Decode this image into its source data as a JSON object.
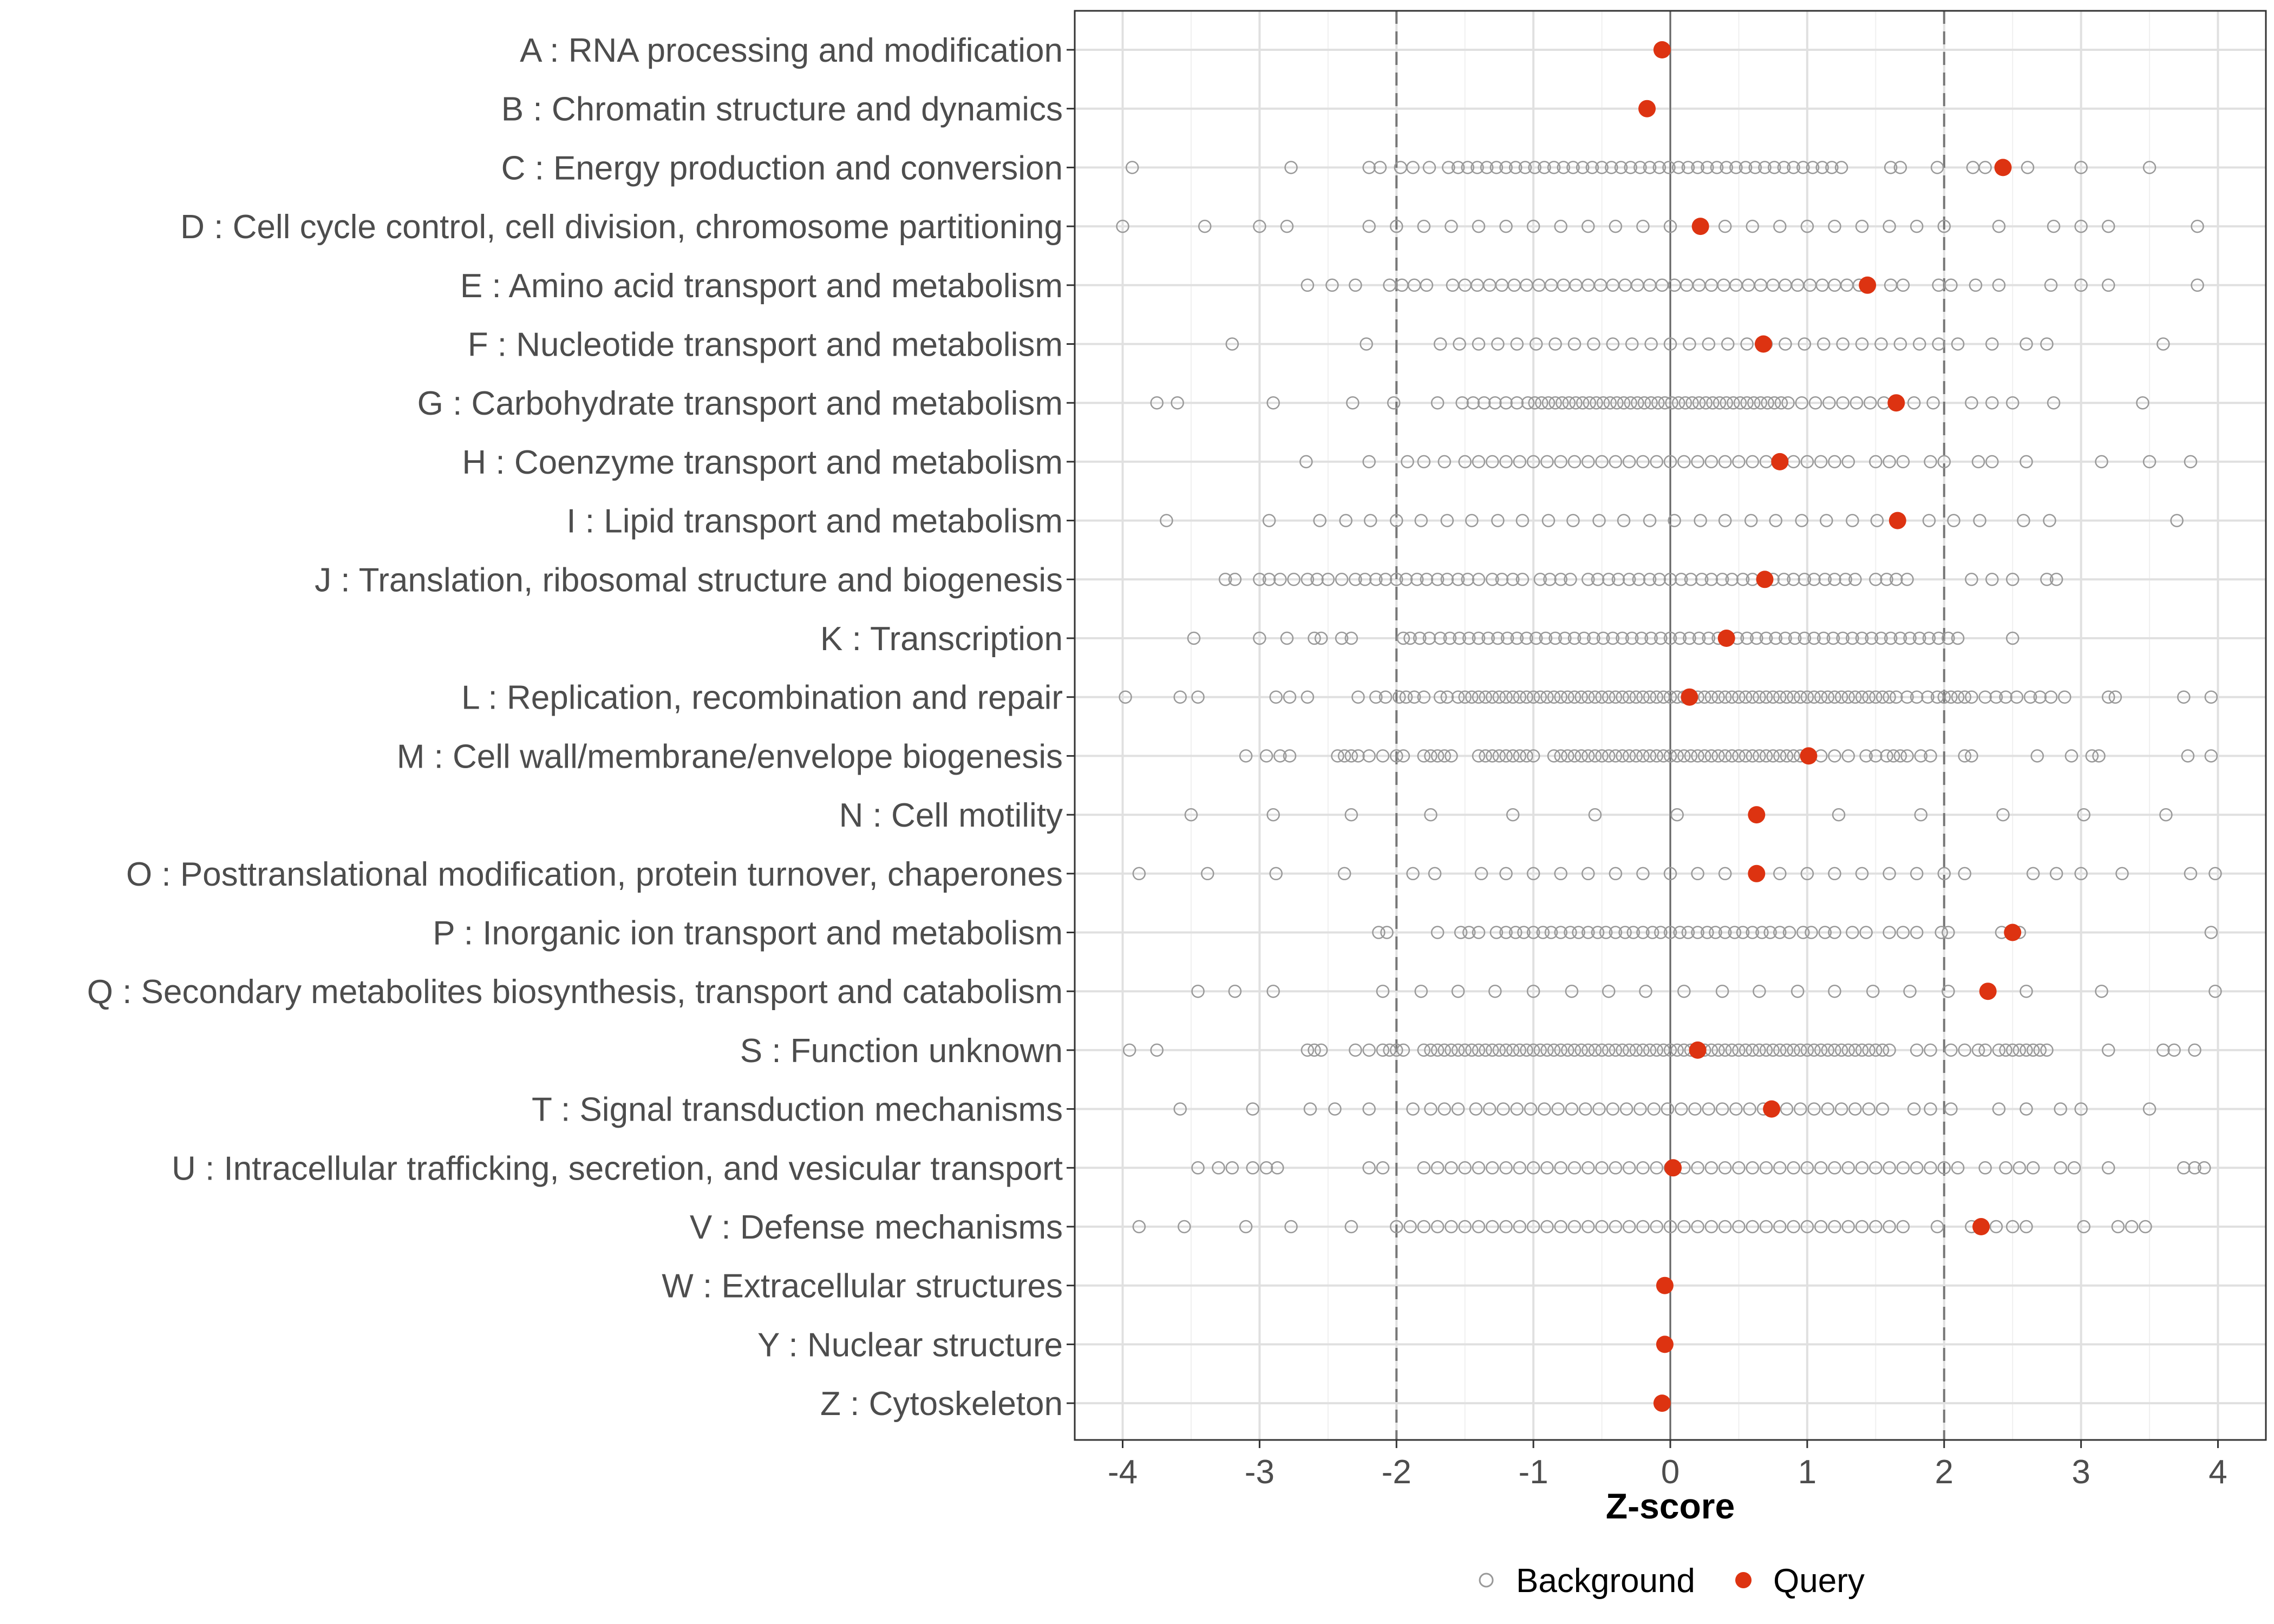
{
  "chart_data": {
    "type": "scatter",
    "title": "",
    "xlabel": "Z-score",
    "ylabel": "",
    "xlim": [
      -4.35,
      4.35
    ],
    "xticks": [
      -4,
      -3,
      -2,
      -1,
      0,
      1,
      2,
      3,
      4
    ],
    "reference_lines": {
      "solid": [
        0
      ],
      "dashed": [
        -2,
        2
      ]
    },
    "grid": true,
    "legend": {
      "position": "bottom",
      "entries": [
        {
          "label": "Background",
          "marker": "open-circle",
          "color": "#999999"
        },
        {
          "label": "Query",
          "marker": "filled-circle",
          "color": "#dd3311"
        }
      ]
    },
    "categories": [
      {
        "label": "A : RNA processing and modification",
        "query": -0.06,
        "background": [
          -0.06
        ]
      },
      {
        "label": "B : Chromatin structure and dynamics",
        "query": -0.17,
        "background": []
      },
      {
        "label": "C : Energy production and conversion",
        "query": 2.43,
        "background": [
          -3.93,
          -2.77,
          -2.2,
          -2.12,
          -1.97,
          -1.88,
          -1.76,
          -1.62,
          -1.55,
          -1.48,
          -1.41,
          -1.34,
          -1.27,
          -1.2,
          -1.13,
          -1.06,
          -0.99,
          -0.92,
          -0.85,
          -0.78,
          -0.71,
          -0.64,
          -0.57,
          -0.5,
          -0.43,
          -0.36,
          -0.29,
          -0.22,
          -0.15,
          -0.08,
          -0.01,
          0.06,
          0.13,
          0.2,
          0.27,
          0.34,
          0.41,
          0.48,
          0.55,
          0.62,
          0.69,
          0.76,
          0.83,
          0.9,
          0.97,
          1.04,
          1.11,
          1.18,
          1.25,
          1.61,
          1.68,
          1.95,
          2.21,
          2.3,
          2.61,
          3.0,
          3.5
        ]
      },
      {
        "label": "D : Cell cycle control, cell division, chromosome partitioning",
        "query": 0.22,
        "background": [
          -4.0,
          -3.4,
          -3.0,
          -2.8,
          -2.2,
          -2.0,
          -1.8,
          -1.6,
          -1.4,
          -1.2,
          -1.0,
          -0.8,
          -0.6,
          -0.4,
          -0.2,
          0.0,
          0.4,
          0.6,
          0.8,
          1.0,
          1.2,
          1.4,
          1.6,
          1.8,
          2.0,
          2.4,
          2.8,
          3.0,
          3.2,
          3.85
        ]
      },
      {
        "label": "E : Amino acid transport and metabolism",
        "query": 1.44,
        "background": [
          -2.65,
          -2.47,
          -2.3,
          -2.05,
          -1.96,
          -1.87,
          -1.78,
          -1.59,
          -1.5,
          -1.41,
          -1.32,
          -1.23,
          -1.14,
          -1.05,
          -0.96,
          -0.87,
          -0.78,
          -0.69,
          -0.6,
          -0.51,
          -0.42,
          -0.33,
          -0.24,
          -0.15,
          -0.06,
          0.03,
          0.12,
          0.21,
          0.3,
          0.39,
          0.48,
          0.57,
          0.66,
          0.75,
          0.84,
          0.93,
          1.02,
          1.11,
          1.2,
          1.29,
          1.38,
          1.61,
          1.7,
          1.96,
          2.05,
          2.23,
          2.4,
          2.78,
          3.0,
          3.2,
          3.85
        ]
      },
      {
        "label": "F : Nucleotide transport and metabolism",
        "query": 0.68,
        "background": [
          -3.2,
          -2.22,
          -1.68,
          -1.54,
          -1.4,
          -1.26,
          -1.12,
          -0.98,
          -0.84,
          -0.7,
          -0.56,
          -0.42,
          -0.28,
          -0.14,
          0.0,
          0.14,
          0.28,
          0.42,
          0.56,
          0.7,
          0.84,
          0.98,
          1.12,
          1.26,
          1.4,
          1.54,
          1.68,
          1.82,
          1.96,
          2.1,
          2.35,
          2.6,
          2.75,
          3.6
        ]
      },
      {
        "label": "G : Carbohydrate transport and metabolism",
        "query": 1.65,
        "background": [
          -3.75,
          -3.6,
          -2.9,
          -2.32,
          -2.02,
          -1.7,
          -1.52,
          -1.44,
          -1.36,
          -1.28,
          -1.2,
          -1.12,
          -1.04,
          -0.99,
          -0.94,
          -0.89,
          -0.84,
          -0.79,
          -0.74,
          -0.69,
          -0.64,
          -0.59,
          -0.54,
          -0.49,
          -0.44,
          -0.39,
          -0.34,
          -0.29,
          -0.24,
          -0.19,
          -0.14,
          -0.09,
          -0.04,
          0.01,
          0.06,
          0.11,
          0.16,
          0.21,
          0.26,
          0.31,
          0.36,
          0.41,
          0.46,
          0.51,
          0.56,
          0.61,
          0.66,
          0.71,
          0.76,
          0.81,
          0.86,
          0.96,
          1.06,
          1.16,
          1.26,
          1.36,
          1.46,
          1.56,
          1.78,
          1.92,
          2.2,
          2.35,
          2.5,
          2.8,
          3.45
        ]
      },
      {
        "label": "H : Coenzyme transport and metabolism",
        "query": 0.8,
        "background": [
          -2.66,
          -2.2,
          -1.92,
          -1.8,
          -1.65,
          -1.5,
          -1.4,
          -1.3,
          -1.2,
          -1.1,
          -1.0,
          -0.9,
          -0.8,
          -0.7,
          -0.6,
          -0.5,
          -0.4,
          -0.3,
          -0.2,
          -0.1,
          0.0,
          0.1,
          0.2,
          0.3,
          0.4,
          0.5,
          0.6,
          0.7,
          0.9,
          1.0,
          1.1,
          1.2,
          1.3,
          1.5,
          1.6,
          1.7,
          1.9,
          2.0,
          2.25,
          2.35,
          2.6,
          3.15,
          3.5,
          3.8
        ]
      },
      {
        "label": "I : Lipid transport and metabolism",
        "query": 1.66,
        "background": [
          -3.68,
          -2.93,
          -2.56,
          -2.37,
          -2.19,
          -2.0,
          -1.82,
          -1.63,
          -1.45,
          -1.26,
          -1.08,
          -0.89,
          -0.71,
          -0.52,
          -0.34,
          -0.15,
          0.03,
          0.22,
          0.4,
          0.59,
          0.77,
          0.96,
          1.14,
          1.33,
          1.51,
          1.89,
          2.07,
          2.26,
          2.58,
          2.77,
          3.7
        ]
      },
      {
        "label": "J : Translation, ribosomal structure and biogenesis",
        "query": 0.69,
        "background": [
          -3.25,
          -3.18,
          -3.0,
          -2.93,
          -2.85,
          -2.75,
          -2.65,
          -2.58,
          -2.5,
          -2.4,
          -2.3,
          -2.23,
          -2.15,
          -2.08,
          -2.0,
          -1.93,
          -1.85,
          -1.78,
          -1.7,
          -1.63,
          -1.55,
          -1.48,
          -1.4,
          -1.3,
          -1.23,
          -1.15,
          -1.08,
          -0.95,
          -0.88,
          -0.8,
          -0.73,
          -0.6,
          -0.53,
          -0.45,
          -0.38,
          -0.3,
          -0.23,
          -0.15,
          -0.08,
          0.0,
          0.08,
          0.15,
          0.23,
          0.3,
          0.38,
          0.45,
          0.53,
          0.6,
          0.75,
          0.83,
          0.9,
          0.98,
          1.05,
          1.13,
          1.2,
          1.28,
          1.35,
          1.5,
          1.58,
          1.65,
          1.73,
          2.2,
          2.35,
          2.5,
          2.75,
          2.82
        ]
      },
      {
        "label": "K : Transcription",
        "query": 0.41,
        "background": [
          -3.48,
          -3.0,
          -2.8,
          -2.6,
          -2.55,
          -2.4,
          -2.33,
          -1.95,
          -1.9,
          -1.83,
          -1.76,
          -1.68,
          -1.61,
          -1.54,
          -1.47,
          -1.4,
          -1.33,
          -1.26,
          -1.19,
          -1.12,
          -1.05,
          -0.98,
          -0.91,
          -0.84,
          -0.77,
          -0.7,
          -0.63,
          -0.56,
          -0.49,
          -0.42,
          -0.35,
          -0.28,
          -0.21,
          -0.14,
          -0.07,
          0.0,
          0.07,
          0.14,
          0.21,
          0.28,
          0.35,
          0.49,
          0.56,
          0.63,
          0.7,
          0.77,
          0.84,
          0.91,
          0.98,
          1.05,
          1.12,
          1.19,
          1.26,
          1.33,
          1.4,
          1.47,
          1.54,
          1.61,
          1.68,
          1.75,
          1.82,
          1.89,
          1.96,
          2.03,
          2.1,
          2.5
        ]
      },
      {
        "label": "L : Replication, recombination and repair",
        "query": 0.14,
        "background": [
          -3.98,
          -3.58,
          -3.45,
          -2.88,
          -2.78,
          -2.65,
          -2.28,
          -2.15,
          -2.08,
          -1.98,
          -1.93,
          -1.87,
          -1.8,
          -1.68,
          -1.63,
          -1.55,
          -1.5,
          -1.45,
          -1.4,
          -1.35,
          -1.3,
          -1.25,
          -1.2,
          -1.15,
          -1.1,
          -1.05,
          -1.0,
          -0.95,
          -0.9,
          -0.85,
          -0.8,
          -0.75,
          -0.7,
          -0.65,
          -0.6,
          -0.55,
          -0.5,
          -0.45,
          -0.4,
          -0.35,
          -0.3,
          -0.25,
          -0.2,
          -0.15,
          -0.1,
          -0.05,
          0.0,
          0.05,
          0.1,
          0.2,
          0.25,
          0.3,
          0.35,
          0.4,
          0.45,
          0.5,
          0.55,
          0.6,
          0.65,
          0.7,
          0.75,
          0.8,
          0.85,
          0.9,
          0.95,
          1.0,
          1.05,
          1.1,
          1.15,
          1.2,
          1.25,
          1.3,
          1.35,
          1.4,
          1.45,
          1.5,
          1.55,
          1.6,
          1.65,
          1.73,
          1.8,
          1.88,
          1.95,
          2.0,
          2.05,
          2.1,
          2.15,
          2.2,
          2.3,
          2.38,
          2.45,
          2.53,
          2.63,
          2.7,
          2.78,
          2.88,
          3.2,
          3.25,
          3.75,
          3.95
        ]
      },
      {
        "label": "M : Cell wall/membrane/envelope biogenesis",
        "query": 1.01,
        "background": [
          -3.1,
          -2.95,
          -2.85,
          -2.78,
          -2.43,
          -2.38,
          -2.33,
          -2.28,
          -2.2,
          -2.1,
          -2.0,
          -1.95,
          -1.8,
          -1.75,
          -1.7,
          -1.65,
          -1.6,
          -1.4,
          -1.35,
          -1.3,
          -1.25,
          -1.2,
          -1.15,
          -1.1,
          -1.05,
          -1.0,
          -0.85,
          -0.8,
          -0.75,
          -0.7,
          -0.65,
          -0.6,
          -0.55,
          -0.5,
          -0.45,
          -0.4,
          -0.35,
          -0.3,
          -0.25,
          -0.2,
          -0.15,
          -0.1,
          -0.05,
          0.0,
          0.05,
          0.1,
          0.15,
          0.2,
          0.25,
          0.3,
          0.35,
          0.4,
          0.45,
          0.5,
          0.55,
          0.6,
          0.65,
          0.7,
          0.75,
          0.8,
          0.85,
          0.9,
          0.95,
          1.1,
          1.2,
          1.3,
          1.43,
          1.5,
          1.58,
          1.63,
          1.68,
          1.73,
          1.83,
          1.9,
          2.15,
          2.2,
          2.68,
          2.93,
          3.08,
          3.13,
          3.78,
          3.95
        ]
      },
      {
        "label": "N : Cell motility",
        "query": 0.63,
        "background": [
          -3.5,
          -2.9,
          -2.33,
          -1.75,
          -1.15,
          -0.55,
          0.05,
          1.23,
          1.83,
          2.43,
          3.02,
          3.62
        ]
      },
      {
        "label": "O : Posttranslational modification, protein turnover, chaperones",
        "query": 0.63,
        "background": [
          -3.88,
          -3.38,
          -2.88,
          -2.38,
          -1.88,
          -1.72,
          -1.38,
          -1.2,
          -1.0,
          -0.8,
          -0.6,
          -0.4,
          -0.2,
          0.0,
          0.2,
          0.4,
          0.8,
          1.0,
          1.2,
          1.4,
          1.6,
          1.8,
          2.0,
          2.15,
          2.65,
          2.82,
          3.0,
          3.3,
          3.8,
          3.98
        ]
      },
      {
        "label": "P : Inorganic ion transport and metabolism",
        "query": 2.5,
        "background": [
          -2.13,
          -2.07,
          -1.7,
          -1.53,
          -1.47,
          -1.4,
          -1.27,
          -1.2,
          -1.13,
          -1.07,
          -1.0,
          -0.93,
          -0.87,
          -0.8,
          -0.73,
          -0.67,
          -0.6,
          -0.53,
          -0.47,
          -0.4,
          -0.33,
          -0.27,
          -0.2,
          -0.13,
          -0.07,
          0.0,
          0.07,
          0.13,
          0.2,
          0.27,
          0.33,
          0.4,
          0.47,
          0.53,
          0.6,
          0.67,
          0.73,
          0.8,
          0.87,
          0.97,
          1.03,
          1.13,
          1.2,
          1.33,
          1.43,
          1.6,
          1.7,
          1.8,
          1.98,
          2.03,
          2.42,
          2.55,
          3.95
        ]
      },
      {
        "label": "Q : Secondary metabolites biosynthesis, transport and catabolism",
        "query": 2.32,
        "background": [
          -3.45,
          -3.18,
          -2.9,
          -2.1,
          -1.82,
          -1.55,
          -1.28,
          -1.0,
          -0.72,
          -0.45,
          -0.18,
          0.1,
          0.38,
          0.65,
          0.93,
          1.2,
          1.48,
          1.75,
          2.03,
          2.6,
          3.15,
          3.98
        ]
      },
      {
        "label": "S : Function unknown",
        "query": 0.2,
        "background": [
          -3.95,
          -3.75,
          -2.65,
          -2.6,
          -2.55,
          -2.3,
          -2.2,
          -2.1,
          -2.05,
          -2.0,
          -1.95,
          -1.8,
          -1.75,
          -1.7,
          -1.65,
          -1.6,
          -1.55,
          -1.5,
          -1.45,
          -1.4,
          -1.35,
          -1.3,
          -1.25,
          -1.2,
          -1.15,
          -1.1,
          -1.05,
          -1.0,
          -0.95,
          -0.9,
          -0.85,
          -0.8,
          -0.75,
          -0.7,
          -0.65,
          -0.6,
          -0.55,
          -0.5,
          -0.45,
          -0.4,
          -0.35,
          -0.3,
          -0.25,
          -0.2,
          -0.15,
          -0.1,
          -0.05,
          0.0,
          0.05,
          0.1,
          0.15,
          0.25,
          0.3,
          0.35,
          0.4,
          0.45,
          0.5,
          0.55,
          0.6,
          0.65,
          0.7,
          0.75,
          0.8,
          0.85,
          0.9,
          0.95,
          1.0,
          1.05,
          1.1,
          1.15,
          1.2,
          1.25,
          1.3,
          1.35,
          1.4,
          1.45,
          1.5,
          1.55,
          1.6,
          1.8,
          1.9,
          2.05,
          2.15,
          2.25,
          2.3,
          2.4,
          2.45,
          2.5,
          2.55,
          2.6,
          2.65,
          2.7,
          2.75,
          3.2,
          3.6,
          3.68,
          3.83
        ]
      },
      {
        "label": "T : Signal transduction mechanisms",
        "query": 0.74,
        "background": [
          -3.58,
          -3.05,
          -2.63,
          -2.45,
          -2.2,
          -1.88,
          -1.75,
          -1.65,
          -1.55,
          -1.42,
          -1.32,
          -1.22,
          -1.12,
          -1.02,
          -0.92,
          -0.82,
          -0.72,
          -0.62,
          -0.52,
          -0.42,
          -0.32,
          -0.22,
          -0.12,
          -0.02,
          0.08,
          0.18,
          0.28,
          0.38,
          0.48,
          0.58,
          0.68,
          0.85,
          0.95,
          1.05,
          1.15,
          1.25,
          1.35,
          1.45,
          1.55,
          1.78,
          1.9,
          2.05,
          2.4,
          2.6,
          2.85,
          3.0,
          3.5
        ]
      },
      {
        "label": "U : Intracellular trafficking, secretion, and vesicular transport",
        "query": 0.02,
        "background": [
          -3.45,
          -3.3,
          -3.2,
          -3.05,
          -2.95,
          -2.87,
          -2.2,
          -2.1,
          -1.8,
          -1.7,
          -1.6,
          -1.5,
          -1.4,
          -1.3,
          -1.2,
          -1.1,
          -1.0,
          -0.9,
          -0.8,
          -0.7,
          -0.6,
          -0.5,
          -0.4,
          -0.3,
          -0.2,
          -0.1,
          0.0,
          0.1,
          0.2,
          0.3,
          0.4,
          0.5,
          0.6,
          0.7,
          0.8,
          0.9,
          1.0,
          1.1,
          1.2,
          1.3,
          1.4,
          1.5,
          1.6,
          1.7,
          1.8,
          1.9,
          2.0,
          2.1,
          2.3,
          2.45,
          2.55,
          2.65,
          2.85,
          2.95,
          3.2,
          3.75,
          3.83,
          3.9
        ]
      },
      {
        "label": "V : Defense mechanisms",
        "query": 2.27,
        "background": [
          -3.88,
          -3.55,
          -3.1,
          -2.77,
          -2.33,
          -2.0,
          -1.9,
          -1.8,
          -1.7,
          -1.6,
          -1.5,
          -1.4,
          -1.3,
          -1.2,
          -1.1,
          -1.0,
          -0.9,
          -0.8,
          -0.7,
          -0.6,
          -0.5,
          -0.4,
          -0.3,
          -0.2,
          -0.1,
          0.0,
          0.1,
          0.2,
          0.3,
          0.4,
          0.5,
          0.6,
          0.7,
          0.8,
          0.9,
          1.0,
          1.1,
          1.2,
          1.3,
          1.4,
          1.5,
          1.6,
          1.7,
          1.95,
          2.2,
          2.38,
          2.5,
          2.6,
          3.02,
          3.27,
          3.37,
          3.47
        ]
      },
      {
        "label": "W : Extracellular structures",
        "query": -0.04,
        "background": []
      },
      {
        "label": "Y : Nuclear structure",
        "query": -0.04,
        "background": []
      },
      {
        "label": "Z : Cytoskeleton",
        "query": -0.06,
        "background": []
      }
    ]
  }
}
